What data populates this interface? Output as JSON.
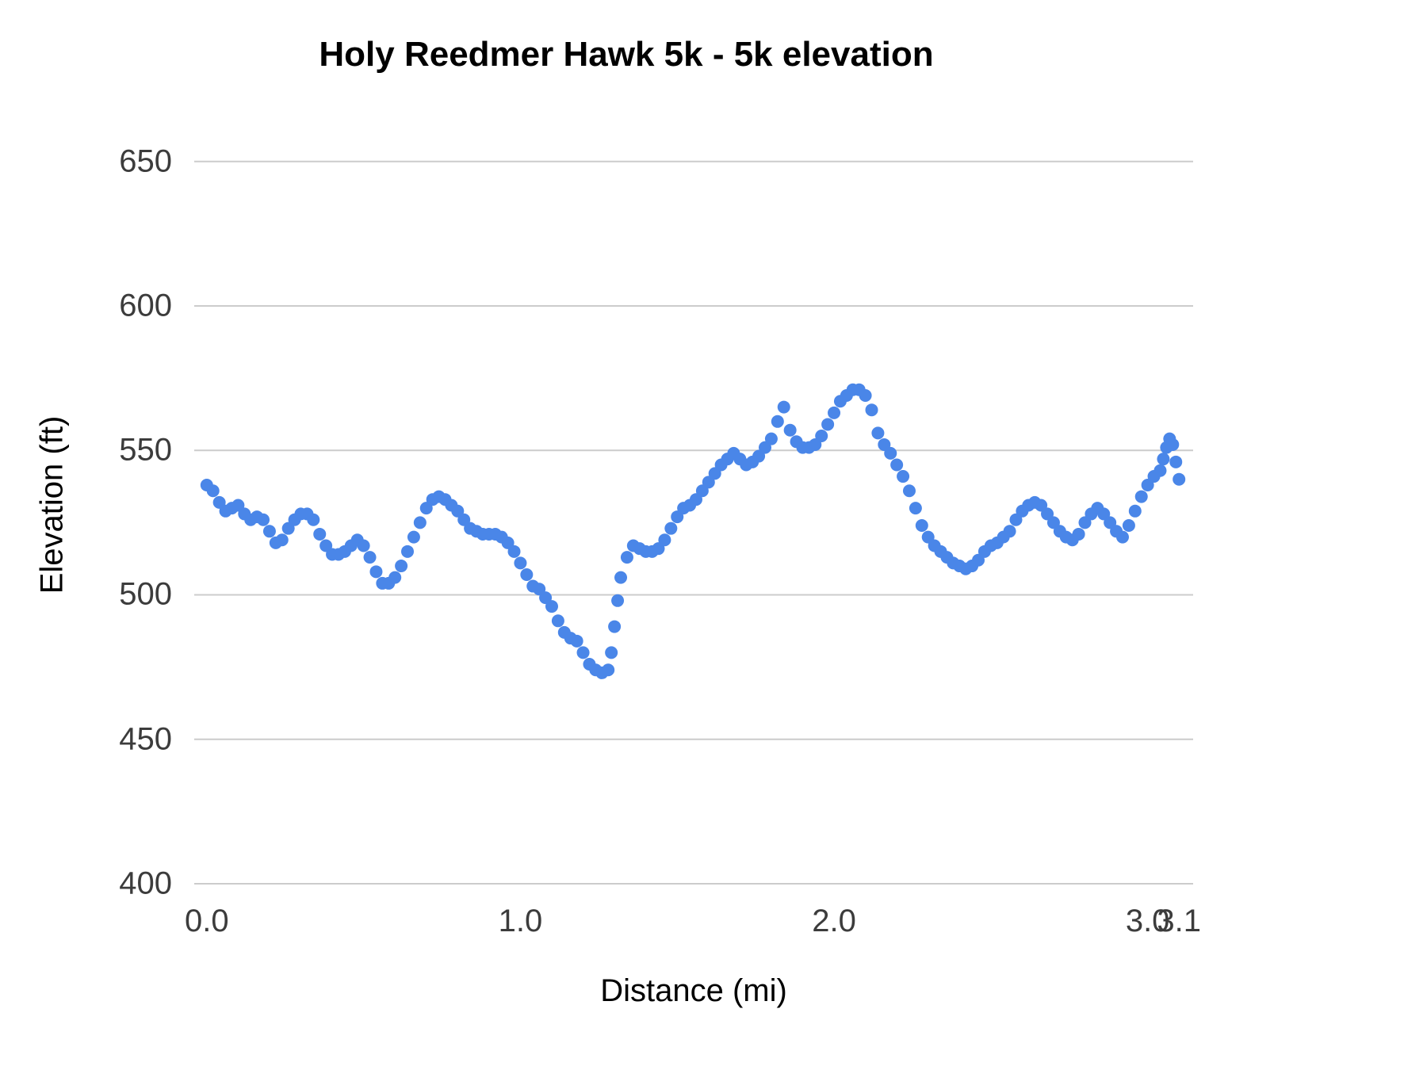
{
  "chart_data": {
    "type": "scatter",
    "title": "Holy Reedmer Hawk 5k - 5k elevation",
    "xlabel": "Distance (mi)",
    "ylabel": "Elevation (ft)",
    "series_color": "#4a86e8",
    "gridline_color": "#cccccc",
    "background_color": "#ffffff",
    "legend": "none",
    "grid": "horizontal-only",
    "xlim": [
      -0.04,
      3.145
    ],
    "ylim": [
      400,
      662
    ],
    "x_ticks": [
      {
        "label": "0.0",
        "value": 0
      },
      {
        "label": "1.0",
        "value": 1
      },
      {
        "label": "2.0",
        "value": 2
      },
      {
        "label": "3.0",
        "value": 3
      },
      {
        "label": "3.1",
        "value": 3.1
      }
    ],
    "y_ticks": [
      {
        "label": "400",
        "value": 400
      },
      {
        "label": "450",
        "value": 450
      },
      {
        "label": "500",
        "value": 500
      },
      {
        "label": "550",
        "value": 550
      },
      {
        "label": "600",
        "value": 600
      },
      {
        "label": "650",
        "value": 650
      }
    ],
    "points": [
      [
        0.0,
        538
      ],
      [
        0.02,
        536
      ],
      [
        0.04,
        532
      ],
      [
        0.06,
        529
      ],
      [
        0.08,
        530
      ],
      [
        0.1,
        531
      ],
      [
        0.12,
        528
      ],
      [
        0.14,
        526
      ],
      [
        0.16,
        527
      ],
      [
        0.18,
        526
      ],
      [
        0.2,
        522
      ],
      [
        0.22,
        518
      ],
      [
        0.24,
        519
      ],
      [
        0.26,
        523
      ],
      [
        0.28,
        526
      ],
      [
        0.3,
        528
      ],
      [
        0.32,
        528
      ],
      [
        0.34,
        526
      ],
      [
        0.36,
        521
      ],
      [
        0.38,
        517
      ],
      [
        0.4,
        514
      ],
      [
        0.42,
        514
      ],
      [
        0.44,
        515
      ],
      [
        0.46,
        517
      ],
      [
        0.48,
        519
      ],
      [
        0.5,
        517
      ],
      [
        0.52,
        513
      ],
      [
        0.54,
        508
      ],
      [
        0.56,
        504
      ],
      [
        0.58,
        504
      ],
      [
        0.6,
        506
      ],
      [
        0.62,
        510
      ],
      [
        0.64,
        515
      ],
      [
        0.66,
        520
      ],
      [
        0.68,
        525
      ],
      [
        0.7,
        530
      ],
      [
        0.72,
        533
      ],
      [
        0.74,
        534
      ],
      [
        0.76,
        533
      ],
      [
        0.78,
        531
      ],
      [
        0.8,
        529
      ],
      [
        0.82,
        526
      ],
      [
        0.84,
        523
      ],
      [
        0.86,
        522
      ],
      [
        0.88,
        521
      ],
      [
        0.9,
        521
      ],
      [
        0.92,
        521
      ],
      [
        0.94,
        520
      ],
      [
        0.96,
        518
      ],
      [
        0.98,
        515
      ],
      [
        1.0,
        511
      ],
      [
        1.02,
        507
      ],
      [
        1.04,
        503
      ],
      [
        1.06,
        502
      ],
      [
        1.08,
        499
      ],
      [
        1.1,
        496
      ],
      [
        1.12,
        491
      ],
      [
        1.14,
        487
      ],
      [
        1.16,
        485
      ],
      [
        1.18,
        484
      ],
      [
        1.2,
        480
      ],
      [
        1.22,
        476
      ],
      [
        1.24,
        474
      ],
      [
        1.26,
        473
      ],
      [
        1.28,
        474
      ],
      [
        1.29,
        480
      ],
      [
        1.3,
        489
      ],
      [
        1.31,
        498
      ],
      [
        1.32,
        506
      ],
      [
        1.34,
        513
      ],
      [
        1.36,
        517
      ],
      [
        1.38,
        516
      ],
      [
        1.4,
        515
      ],
      [
        1.42,
        515
      ],
      [
        1.44,
        516
      ],
      [
        1.46,
        519
      ],
      [
        1.48,
        523
      ],
      [
        1.5,
        527
      ],
      [
        1.52,
        530
      ],
      [
        1.54,
        531
      ],
      [
        1.56,
        533
      ],
      [
        1.58,
        536
      ],
      [
        1.6,
        539
      ],
      [
        1.62,
        542
      ],
      [
        1.64,
        545
      ],
      [
        1.66,
        547
      ],
      [
        1.68,
        549
      ],
      [
        1.7,
        547
      ],
      [
        1.72,
        545
      ],
      [
        1.74,
        546
      ],
      [
        1.76,
        548
      ],
      [
        1.78,
        551
      ],
      [
        1.8,
        554
      ],
      [
        1.82,
        560
      ],
      [
        1.84,
        565
      ],
      [
        1.86,
        557
      ],
      [
        1.88,
        553
      ],
      [
        1.9,
        551
      ],
      [
        1.92,
        551
      ],
      [
        1.94,
        552
      ],
      [
        1.96,
        555
      ],
      [
        1.98,
        559
      ],
      [
        2.0,
        563
      ],
      [
        2.02,
        567
      ],
      [
        2.04,
        569
      ],
      [
        2.06,
        571
      ],
      [
        2.08,
        571
      ],
      [
        2.1,
        569
      ],
      [
        2.12,
        564
      ],
      [
        2.14,
        556
      ],
      [
        2.16,
        552
      ],
      [
        2.18,
        549
      ],
      [
        2.2,
        545
      ],
      [
        2.22,
        541
      ],
      [
        2.24,
        536
      ],
      [
        2.26,
        530
      ],
      [
        2.28,
        524
      ],
      [
        2.3,
        520
      ],
      [
        2.32,
        517
      ],
      [
        2.34,
        515
      ],
      [
        2.36,
        513
      ],
      [
        2.38,
        511
      ],
      [
        2.4,
        510
      ],
      [
        2.42,
        509
      ],
      [
        2.44,
        510
      ],
      [
        2.46,
        512
      ],
      [
        2.48,
        515
      ],
      [
        2.5,
        517
      ],
      [
        2.52,
        518
      ],
      [
        2.54,
        520
      ],
      [
        2.56,
        522
      ],
      [
        2.58,
        526
      ],
      [
        2.6,
        529
      ],
      [
        2.62,
        531
      ],
      [
        2.64,
        532
      ],
      [
        2.66,
        531
      ],
      [
        2.68,
        528
      ],
      [
        2.7,
        525
      ],
      [
        2.72,
        522
      ],
      [
        2.74,
        520
      ],
      [
        2.76,
        519
      ],
      [
        2.78,
        521
      ],
      [
        2.8,
        525
      ],
      [
        2.82,
        528
      ],
      [
        2.84,
        530
      ],
      [
        2.86,
        528
      ],
      [
        2.88,
        525
      ],
      [
        2.9,
        522
      ],
      [
        2.92,
        520
      ],
      [
        2.94,
        524
      ],
      [
        2.96,
        529
      ],
      [
        2.98,
        534
      ],
      [
        3.0,
        538
      ],
      [
        3.02,
        541
      ],
      [
        3.04,
        543
      ],
      [
        3.05,
        547
      ],
      [
        3.06,
        551
      ],
      [
        3.07,
        554
      ],
      [
        3.08,
        552
      ],
      [
        3.09,
        546
      ],
      [
        3.1,
        540
      ]
    ]
  }
}
